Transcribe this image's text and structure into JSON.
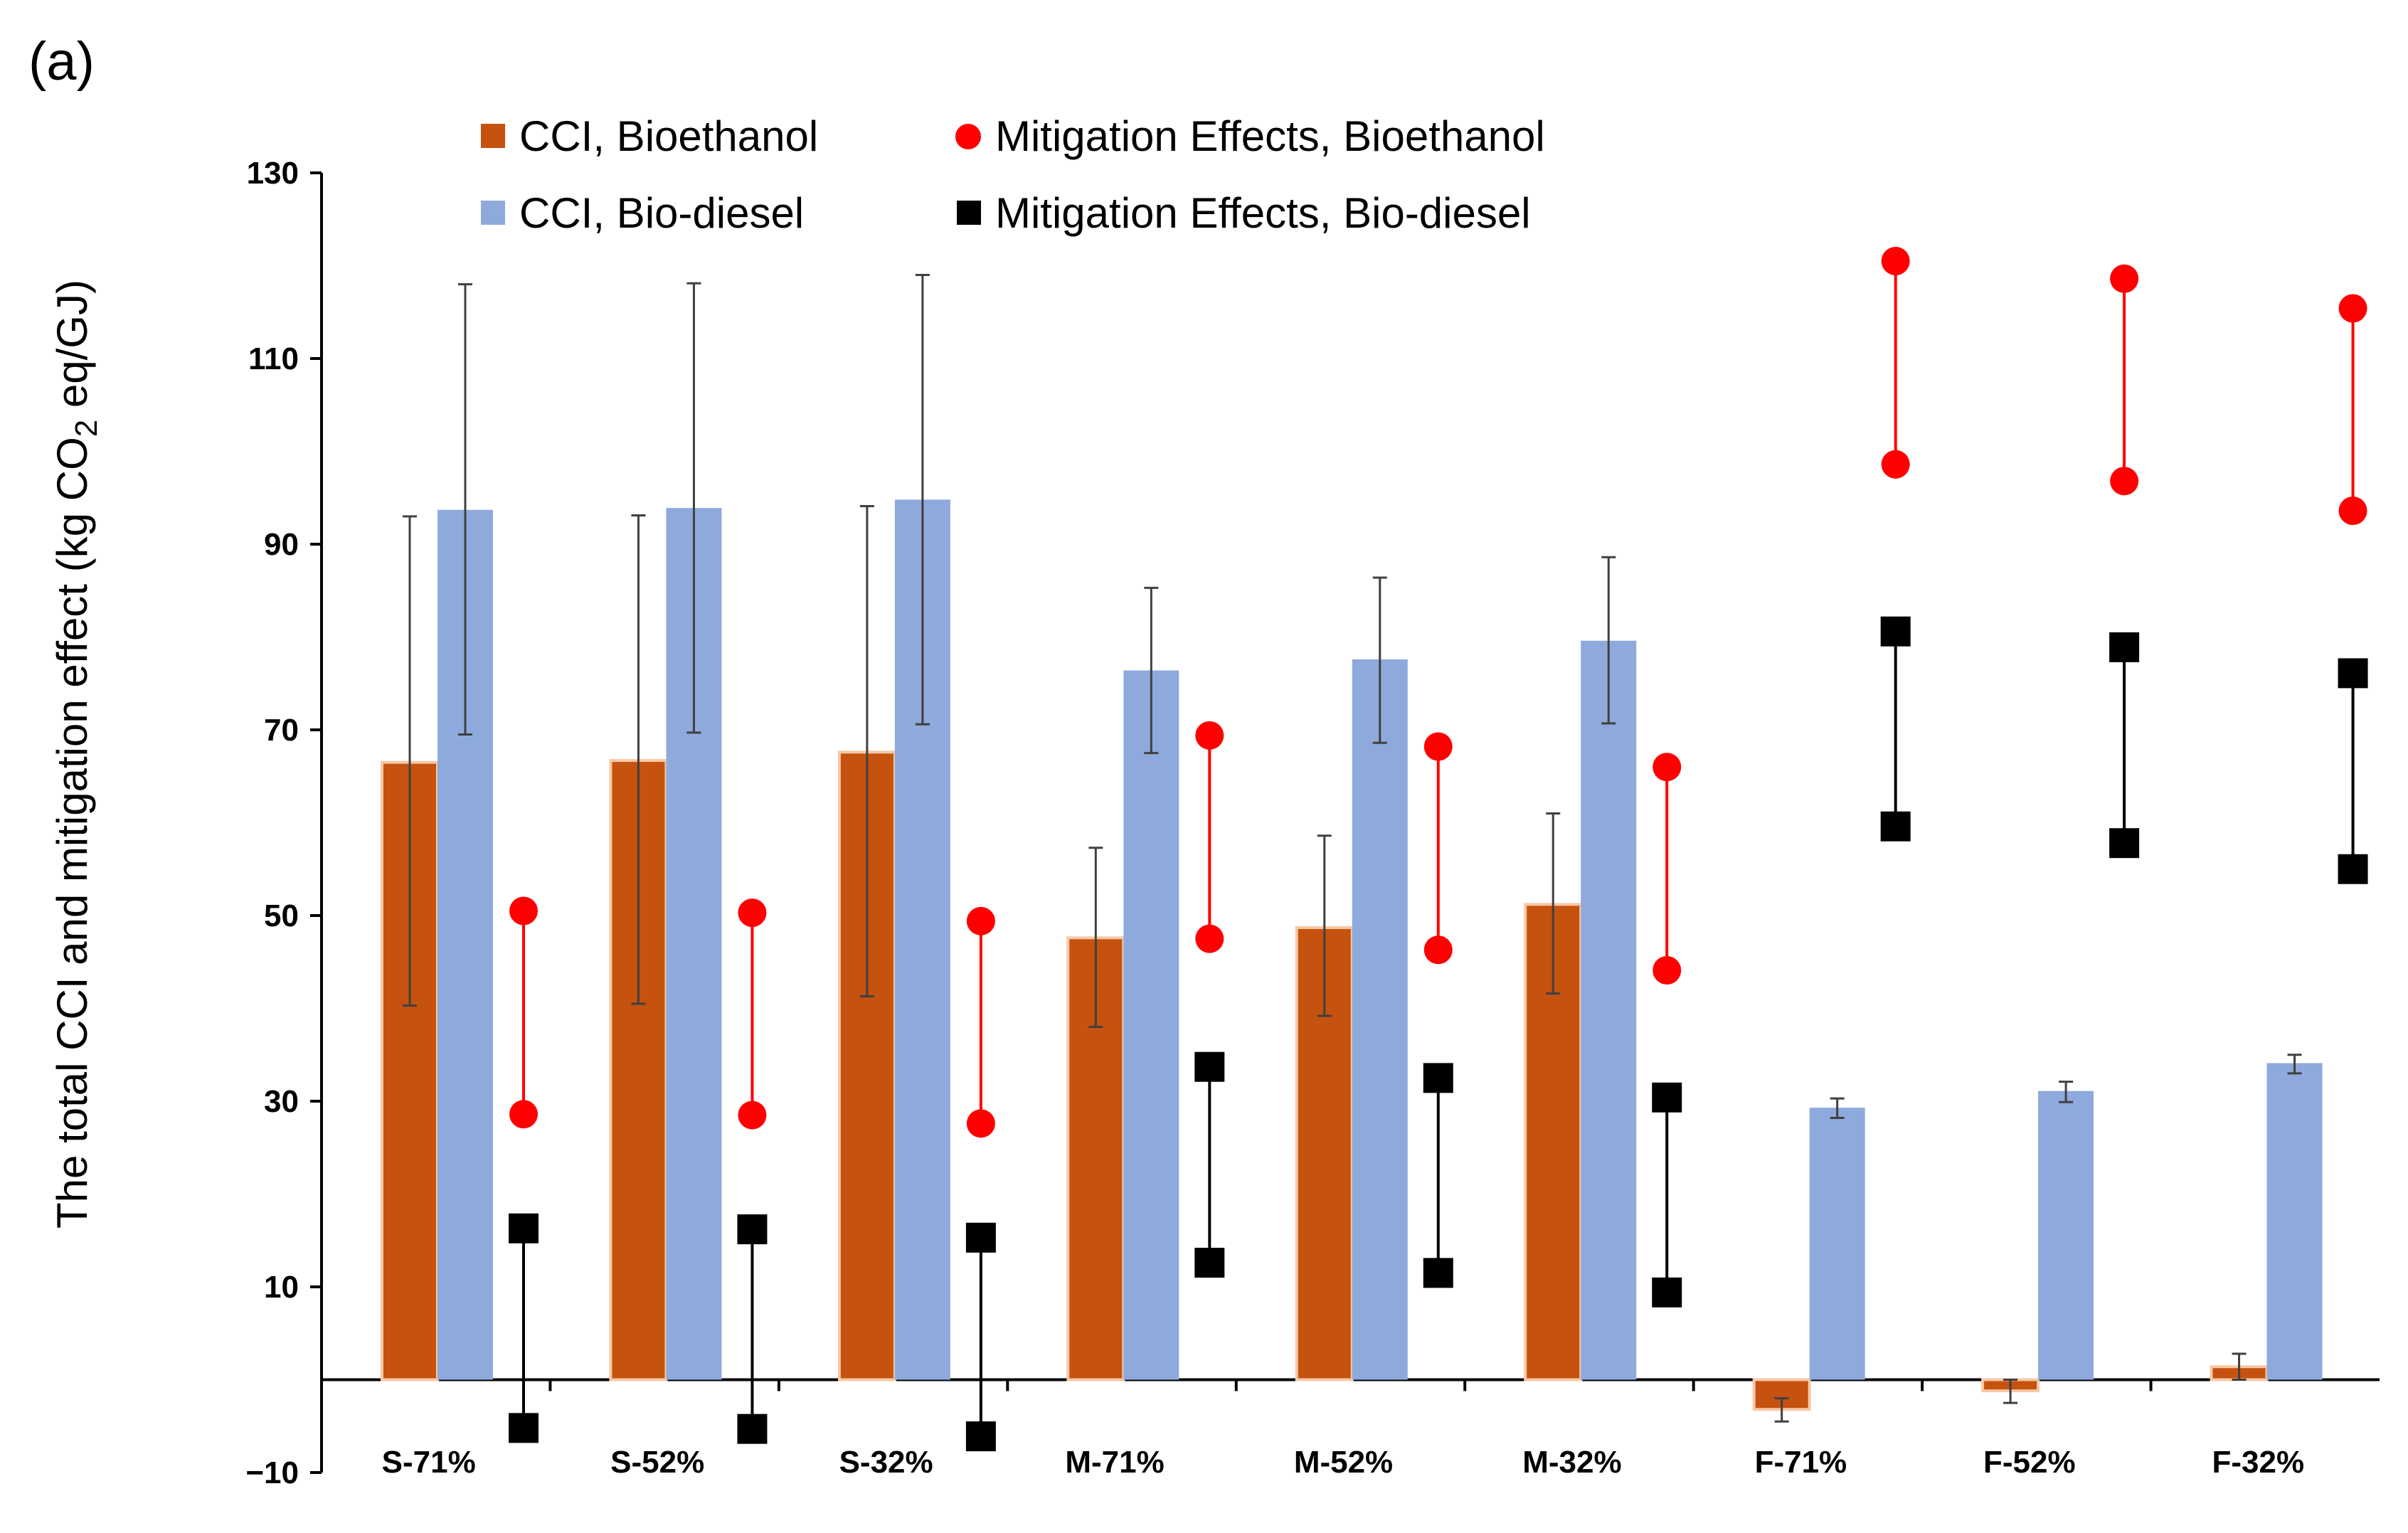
{
  "panel_label": "(a)",
  "chart_data": {
    "type": "bar",
    "title": "",
    "xlabel": "",
    "ylabel": {
      "prefix": "The total CCI and mitigation effect (kg CO",
      "subscript": "2",
      "suffix": " eq/GJ)"
    },
    "ylim": [
      -10,
      130
    ],
    "yticks": [
      -10,
      10,
      30,
      50,
      70,
      90,
      110,
      130
    ],
    "ytick_labels": [
      "−10",
      "10",
      "30",
      "50",
      "70",
      "90",
      "110",
      "130"
    ],
    "categories": [
      "S-71%",
      "S-52%",
      "S-32%",
      "M-71%",
      "M-52%",
      "M-32%",
      "F-71%",
      "F-52%",
      "F-32%"
    ],
    "legend_position": "top",
    "colors": {
      "bioethanol_bar": "#c5520f",
      "biodiesel_bar": "#8eaadc",
      "bioethanol_mitigation": "#ff0000",
      "biodiesel_mitigation": "#000000",
      "errorbar": "#404040"
    },
    "series": [
      {
        "name": "CCI, Bioethanol",
        "kind": "bar",
        "values": [
          66.5,
          66.7,
          67.6,
          47.6,
          48.7,
          51.2,
          -3.2,
          -1.2,
          1.4
        ],
        "err_low": [
          40.3,
          40.5,
          41.3,
          38.0,
          39.2,
          41.6,
          -4.5,
          -2.5,
          0.0
        ],
        "err_high": [
          93.0,
          93.1,
          94.1,
          57.3,
          58.6,
          61.0,
          -2.0,
          0.0,
          2.8
        ]
      },
      {
        "name": "CCI, Bio-diesel",
        "kind": "bar",
        "values": [
          93.7,
          93.9,
          94.8,
          76.4,
          77.6,
          79.6,
          29.3,
          31.1,
          34.1
        ],
        "err_low": [
          69.5,
          69.7,
          70.6,
          67.5,
          68.6,
          70.7,
          28.2,
          29.9,
          33.0
        ],
        "err_high": [
          118.0,
          118.1,
          119.0,
          85.3,
          86.4,
          88.6,
          30.3,
          32.1,
          35.0
        ]
      },
      {
        "name": "Mitigation Effects, Bioethanol",
        "kind": "range",
        "high": [
          50.5,
          50.3,
          49.4,
          69.4,
          68.2,
          66.0,
          120.5,
          118.6,
          115.4
        ],
        "low": [
          28.6,
          28.5,
          27.6,
          47.5,
          46.3,
          44.1,
          98.6,
          96.8,
          93.6
        ]
      },
      {
        "name": "Mitigation Effects, Bio-diesel",
        "kind": "range",
        "high": [
          16.3,
          16.2,
          15.3,
          33.7,
          32.5,
          30.4,
          80.6,
          78.9,
          76.1
        ],
        "low": [
          -5.2,
          -5.3,
          -6.1,
          12.6,
          11.5,
          9.4,
          59.6,
          57.8,
          55.0
        ]
      }
    ]
  }
}
